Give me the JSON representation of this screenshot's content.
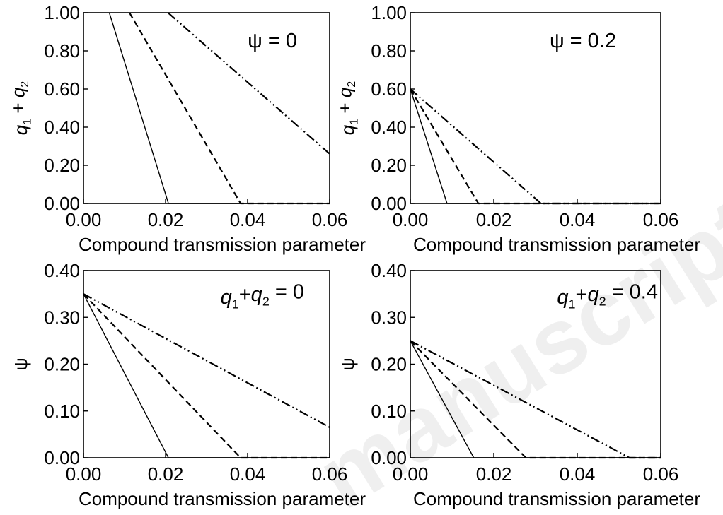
{
  "watermark": "manuscript",
  "line_styles": [
    {
      "dash": "",
      "width": 1.4
    },
    {
      "dash": "9,5",
      "width": 2.2
    },
    {
      "dash": "13,4,2,4,2,4",
      "width": 2.2
    }
  ],
  "chart_data": [
    {
      "type": "line",
      "annotation_parts": [
        {
          "text": "ψ = 0",
          "style": "normal"
        }
      ],
      "xlabel": "Compound transmission parameter",
      "ylabel_parts": [
        {
          "text": "q",
          "style": "italic"
        },
        {
          "text": "1",
          "style": "sub"
        },
        {
          "text": " + ",
          "style": "normal"
        },
        {
          "text": "q",
          "style": "italic"
        },
        {
          "text": "2",
          "style": "sub"
        }
      ],
      "xlim": [
        0,
        0.06
      ],
      "ylim": [
        0,
        1
      ],
      "xticks": [
        0,
        0.02,
        0.04,
        0.06
      ],
      "xtick_labels": [
        "0.00",
        "0.02",
        "0.04",
        "0.06"
      ],
      "yticks": [
        0,
        0.2,
        0.4,
        0.6,
        0.8,
        1.0
      ],
      "ytick_labels": [
        "0.00",
        "0.20",
        "0.40",
        "0.60",
        "0.80",
        "1.00"
      ],
      "series": [
        {
          "x": [
            0.0063,
            0.0207,
            0.06
          ],
          "y": [
            1.0,
            0.0,
            0.0
          ]
        },
        {
          "x": [
            0.0112,
            0.0383,
            0.06
          ],
          "y": [
            1.0,
            0.0,
            0.0
          ]
        },
        {
          "x": [
            0.0206,
            0.06
          ],
          "y": [
            1.0,
            0.26
          ]
        }
      ]
    },
    {
      "type": "line",
      "annotation_parts": [
        {
          "text": "ψ = 0.2",
          "style": "normal"
        }
      ],
      "xlabel": "Compound transmission parameter",
      "ylabel_parts": [
        {
          "text": "q",
          "style": "italic"
        },
        {
          "text": "1",
          "style": "sub"
        },
        {
          "text": " + ",
          "style": "normal"
        },
        {
          "text": "q",
          "style": "italic"
        },
        {
          "text": "2",
          "style": "sub"
        }
      ],
      "xlim": [
        0,
        0.06
      ],
      "ylim": [
        0,
        1
      ],
      "xticks": [
        0,
        0.02,
        0.04,
        0.06
      ],
      "xtick_labels": [
        "0.00",
        "0.02",
        "0.04",
        "0.06"
      ],
      "yticks": [
        0,
        0.2,
        0.4,
        0.6,
        0.8,
        1.0
      ],
      "ytick_labels": [
        "0.00",
        "0.20",
        "0.40",
        "0.60",
        "0.80",
        "1.00"
      ],
      "series": [
        {
          "x": [
            0,
            0.0088,
            0.06
          ],
          "y": [
            0.6,
            0.0,
            0.0
          ]
        },
        {
          "x": [
            0,
            0.0163,
            0.06
          ],
          "y": [
            0.6,
            0.0,
            0.0
          ]
        },
        {
          "x": [
            0,
            0.0313,
            0.06
          ],
          "y": [
            0.6,
            0.0,
            0.0
          ]
        }
      ]
    },
    {
      "type": "line",
      "annotation_parts": [
        {
          "text": "q",
          "style": "italic"
        },
        {
          "text": "1",
          "style": "sub"
        },
        {
          "text": "+",
          "style": "normal"
        },
        {
          "text": "q",
          "style": "italic"
        },
        {
          "text": "2",
          "style": "sub"
        },
        {
          "text": " = 0",
          "style": "normal"
        }
      ],
      "xlabel": "Compound transmission parameter",
      "ylabel_parts": [
        {
          "text": "ψ",
          "style": "normal"
        }
      ],
      "xlim": [
        0,
        0.06
      ],
      "ylim": [
        0,
        0.4
      ],
      "xticks": [
        0,
        0.02,
        0.04,
        0.06
      ],
      "xtick_labels": [
        "0.00",
        "0.02",
        "0.04",
        "0.06"
      ],
      "yticks": [
        0,
        0.1,
        0.2,
        0.3,
        0.4
      ],
      "ytick_labels": [
        "0.00",
        "0.10",
        "0.20",
        "0.30",
        "0.40"
      ],
      "series": [
        {
          "x": [
            0,
            0.0207,
            0.06
          ],
          "y": [
            0.35,
            0.0,
            0.0
          ]
        },
        {
          "x": [
            0,
            0.0383,
            0.06
          ],
          "y": [
            0.35,
            0.0,
            0.0
          ]
        },
        {
          "x": [
            0,
            0.06
          ],
          "y": [
            0.35,
            0.065
          ]
        }
      ]
    },
    {
      "type": "line",
      "annotation_parts": [
        {
          "text": "q",
          "style": "italic"
        },
        {
          "text": "1",
          "style": "sub"
        },
        {
          "text": "+",
          "style": "normal"
        },
        {
          "text": "q",
          "style": "italic"
        },
        {
          "text": "2",
          "style": "sub"
        },
        {
          "text": " = 0.4",
          "style": "normal"
        }
      ],
      "xlabel": "Compound transmission parameter",
      "ylabel_parts": [
        {
          "text": "ψ",
          "style": "normal"
        }
      ],
      "xlim": [
        0,
        0.06
      ],
      "ylim": [
        0,
        0.4
      ],
      "xticks": [
        0,
        0.02,
        0.04,
        0.06
      ],
      "xtick_labels": [
        "0.00",
        "0.02",
        "0.04",
        "0.06"
      ],
      "yticks": [
        0,
        0.1,
        0.2,
        0.3,
        0.4
      ],
      "ytick_labels": [
        "0.00",
        "0.10",
        "0.20",
        "0.30",
        "0.40"
      ],
      "series": [
        {
          "x": [
            0,
            0.0152,
            0.06
          ],
          "y": [
            0.25,
            0.0,
            0.0
          ]
        },
        {
          "x": [
            0,
            0.0277,
            0.06
          ],
          "y": [
            0.25,
            0.0,
            0.0
          ]
        },
        {
          "x": [
            0,
            0.0525,
            0.06
          ],
          "y": [
            0.25,
            0.0,
            0.0
          ]
        }
      ]
    }
  ]
}
